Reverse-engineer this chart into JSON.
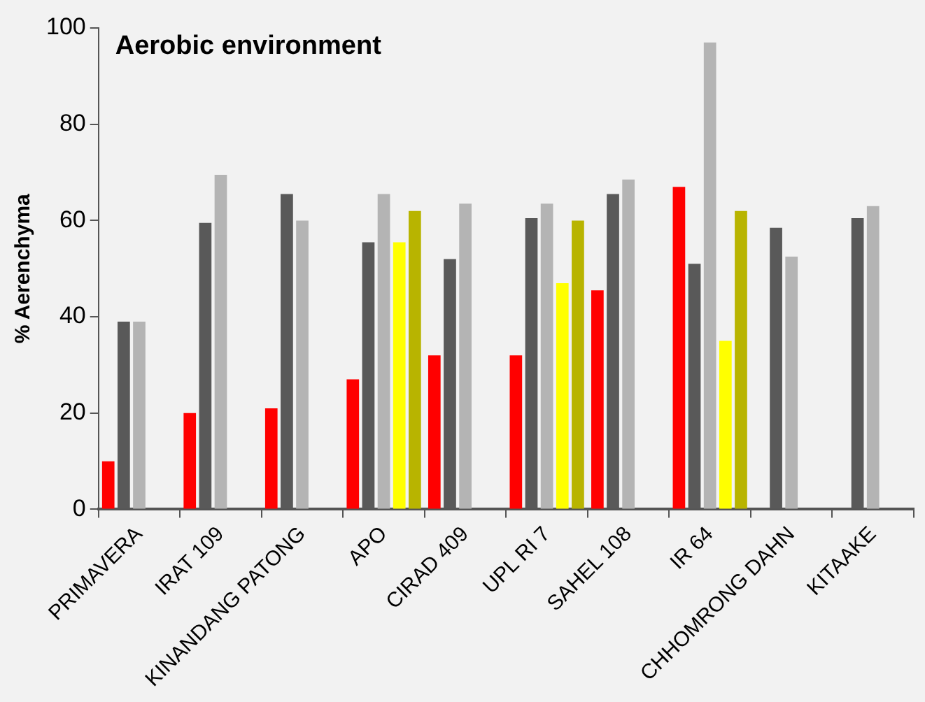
{
  "chart_data": {
    "type": "bar",
    "title": "Aerobic environment",
    "ylabel": "% Aerenchyma",
    "categories": [
      "PRIMAVERA",
      "IRAT 109",
      "KINANDANG PATONG",
      "APO",
      "CIRAD 409",
      "UPL RI 7",
      "SAHEL 108",
      "IR 64",
      "CHHOMRONG DAHN",
      "KITAAKE"
    ],
    "series": [
      {
        "color": "#ff0000",
        "values": [
          10,
          20,
          21,
          27,
          32,
          32,
          45.5,
          67,
          null,
          null
        ]
      },
      {
        "color": "#595959",
        "values": [
          39,
          59.5,
          65.5,
          55.5,
          52,
          60.5,
          65.5,
          51,
          58.5,
          60.5
        ]
      },
      {
        "color": "#b4b4b4",
        "values": [
          39,
          69.5,
          60,
          65.5,
          63.5,
          63.5,
          68.5,
          97,
          52.5,
          63
        ]
      },
      {
        "color": "#ffff00",
        "values": [
          null,
          null,
          null,
          55.5,
          null,
          47,
          null,
          35,
          null,
          null
        ]
      },
      {
        "color": "#b8b400",
        "values": [
          null,
          null,
          null,
          62,
          null,
          60,
          null,
          62,
          null,
          null
        ]
      }
    ],
    "ylim": [
      0,
      100
    ],
    "yticks": [
      0,
      20,
      40,
      60,
      80,
      100
    ],
    "grid": false,
    "legend": false
  }
}
